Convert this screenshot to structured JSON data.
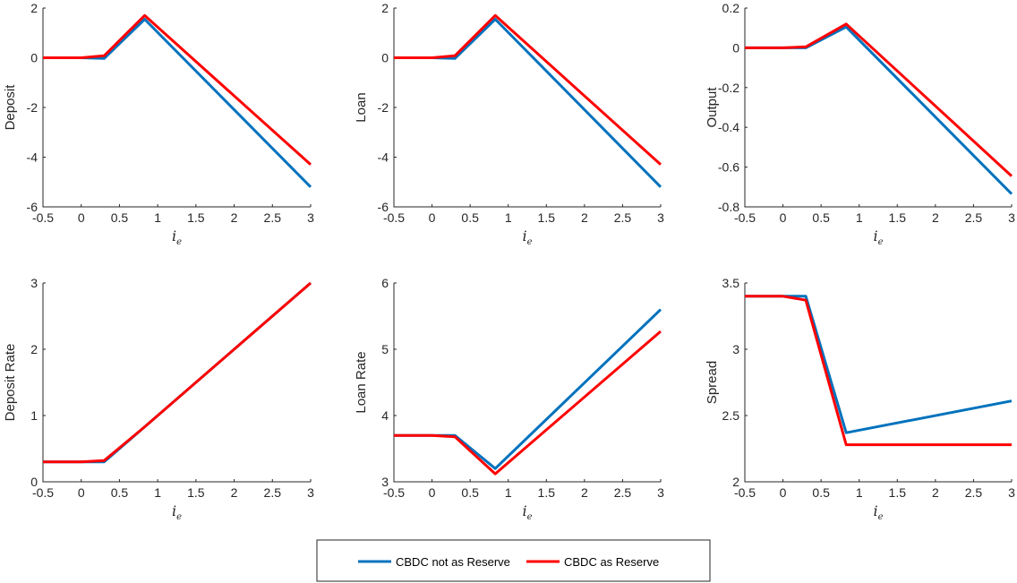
{
  "series_legend": {
    "items": [
      {
        "label": "CBDC not as Reserve",
        "color": "#0072BD"
      },
      {
        "label": "CBDC as Reserve",
        "color": "#FF0000"
      }
    ]
  },
  "chart_data": [
    {
      "type": "line",
      "ylabel": "Deposit",
      "xlabel": "i_e",
      "xlim": [
        -0.5,
        3
      ],
      "ylim": [
        -6,
        2
      ],
      "xticks": [
        -0.5,
        0,
        0.5,
        1,
        1.5,
        2,
        2.5,
        3
      ],
      "xtick_labels": [
        "-0.5",
        "0",
        "0.5",
        "1",
        "1.5",
        "2",
        "2.5",
        "3"
      ],
      "yticks": [
        -6,
        -4,
        -2,
        0,
        2
      ],
      "ytick_labels": [
        "-6",
        "-4",
        "-2",
        "0",
        "2"
      ],
      "series": [
        {
          "color": "#0072BD",
          "x": [
            -0.5,
            0,
            0.3,
            0.83,
            3
          ],
          "y": [
            0,
            0,
            -0.03,
            1.55,
            -5.2
          ]
        },
        {
          "color": "#FF0000",
          "x": [
            -0.5,
            0,
            0.3,
            0.83,
            3
          ],
          "y": [
            0,
            0,
            0.08,
            1.7,
            -4.3
          ]
        }
      ]
    },
    {
      "type": "line",
      "ylabel": "Loan",
      "xlabel": "i_e",
      "xlim": [
        -0.5,
        3
      ],
      "ylim": [
        -6,
        2
      ],
      "xticks": [
        -0.5,
        0,
        0.5,
        1,
        1.5,
        2,
        2.5,
        3
      ],
      "xtick_labels": [
        "-0.5",
        "0",
        "0.5",
        "1",
        "1.5",
        "2",
        "2.5",
        "3"
      ],
      "yticks": [
        -6,
        -4,
        -2,
        0,
        2
      ],
      "ytick_labels": [
        "-6",
        "-4",
        "-2",
        "0",
        "2"
      ],
      "series": [
        {
          "color": "#0072BD",
          "x": [
            -0.5,
            0,
            0.3,
            0.83,
            3
          ],
          "y": [
            0,
            0,
            -0.03,
            1.55,
            -5.2
          ]
        },
        {
          "color": "#FF0000",
          "x": [
            -0.5,
            0,
            0.3,
            0.83,
            3
          ],
          "y": [
            0,
            0,
            0.08,
            1.7,
            -4.3
          ]
        }
      ]
    },
    {
      "type": "line",
      "ylabel": "Output",
      "xlabel": "i_e",
      "xlim": [
        -0.5,
        3
      ],
      "ylim": [
        -0.8,
        0.2
      ],
      "xticks": [
        -0.5,
        0,
        0.5,
        1,
        1.5,
        2,
        2.5,
        3
      ],
      "xtick_labels": [
        "-0.5",
        "0",
        "0.5",
        "1",
        "1.5",
        "2",
        "2.5",
        "3"
      ],
      "yticks": [
        -0.8,
        -0.6,
        -0.4,
        -0.2,
        0,
        0.2
      ],
      "ytick_labels": [
        "-0.8",
        "-0.6",
        "-0.4",
        "-0.2",
        "0",
        "0.2"
      ],
      "series": [
        {
          "color": "#0072BD",
          "x": [
            -0.5,
            0,
            0.3,
            0.83,
            3
          ],
          "y": [
            0,
            0,
            0,
            0.105,
            -0.735
          ]
        },
        {
          "color": "#FF0000",
          "x": [
            -0.5,
            0,
            0.3,
            0.83,
            3
          ],
          "y": [
            0,
            0,
            0.005,
            0.12,
            -0.645
          ]
        }
      ]
    },
    {
      "type": "line",
      "ylabel": "Deposit Rate",
      "xlabel": "i_e",
      "xlim": [
        -0.5,
        3
      ],
      "ylim": [
        0,
        3
      ],
      "xticks": [
        -0.5,
        0,
        0.5,
        1,
        1.5,
        2,
        2.5,
        3
      ],
      "xtick_labels": [
        "-0.5",
        "0",
        "0.5",
        "1",
        "1.5",
        "2",
        "2.5",
        "3"
      ],
      "yticks": [
        0,
        1,
        2,
        3
      ],
      "ytick_labels": [
        "0",
        "1",
        "2",
        "3"
      ],
      "series": [
        {
          "color": "#0072BD",
          "x": [
            -0.5,
            0,
            0.3,
            0.83,
            3
          ],
          "y": [
            0.3,
            0.3,
            0.3,
            0.83,
            3
          ]
        },
        {
          "color": "#FF0000",
          "x": [
            -0.5,
            0,
            0.3,
            0.83,
            3
          ],
          "y": [
            0.3,
            0.3,
            0.32,
            0.83,
            3
          ]
        }
      ]
    },
    {
      "type": "line",
      "ylabel": "Loan Rate",
      "xlabel": "i_e",
      "xlim": [
        -0.5,
        3
      ],
      "ylim": [
        3,
        6
      ],
      "xticks": [
        -0.5,
        0,
        0.5,
        1,
        1.5,
        2,
        2.5,
        3
      ],
      "xtick_labels": [
        "-0.5",
        "0",
        "0.5",
        "1",
        "1.5",
        "2",
        "2.5",
        "3"
      ],
      "yticks": [
        3,
        4,
        5,
        6
      ],
      "ytick_labels": [
        "3",
        "4",
        "5",
        "6"
      ],
      "series": [
        {
          "color": "#0072BD",
          "x": [
            -0.5,
            0,
            0.3,
            0.83,
            3
          ],
          "y": [
            3.7,
            3.7,
            3.7,
            3.2,
            5.6
          ]
        },
        {
          "color": "#FF0000",
          "x": [
            -0.5,
            0,
            0.3,
            0.83,
            3
          ],
          "y": [
            3.7,
            3.7,
            3.68,
            3.12,
            5.27
          ]
        }
      ]
    },
    {
      "type": "line",
      "ylabel": "Spread",
      "xlabel": "i_e",
      "xlim": [
        -0.5,
        3
      ],
      "ylim": [
        2,
        3.5
      ],
      "xticks": [
        -0.5,
        0,
        0.5,
        1,
        1.5,
        2,
        2.5,
        3
      ],
      "xtick_labels": [
        "-0.5",
        "0",
        "0.5",
        "1",
        "1.5",
        "2",
        "2.5",
        "3"
      ],
      "yticks": [
        2,
        2.5,
        3,
        3.5
      ],
      "ytick_labels": [
        "2",
        "2.5",
        "3",
        "3.5"
      ],
      "series": [
        {
          "color": "#0072BD",
          "x": [
            -0.5,
            0,
            0.3,
            0.83,
            3
          ],
          "y": [
            3.4,
            3.4,
            3.4,
            2.37,
            2.61
          ]
        },
        {
          "color": "#FF0000",
          "x": [
            -0.5,
            0,
            0.3,
            0.83,
            3
          ],
          "y": [
            3.4,
            3.4,
            3.37,
            2.28,
            2.28
          ]
        }
      ]
    }
  ]
}
